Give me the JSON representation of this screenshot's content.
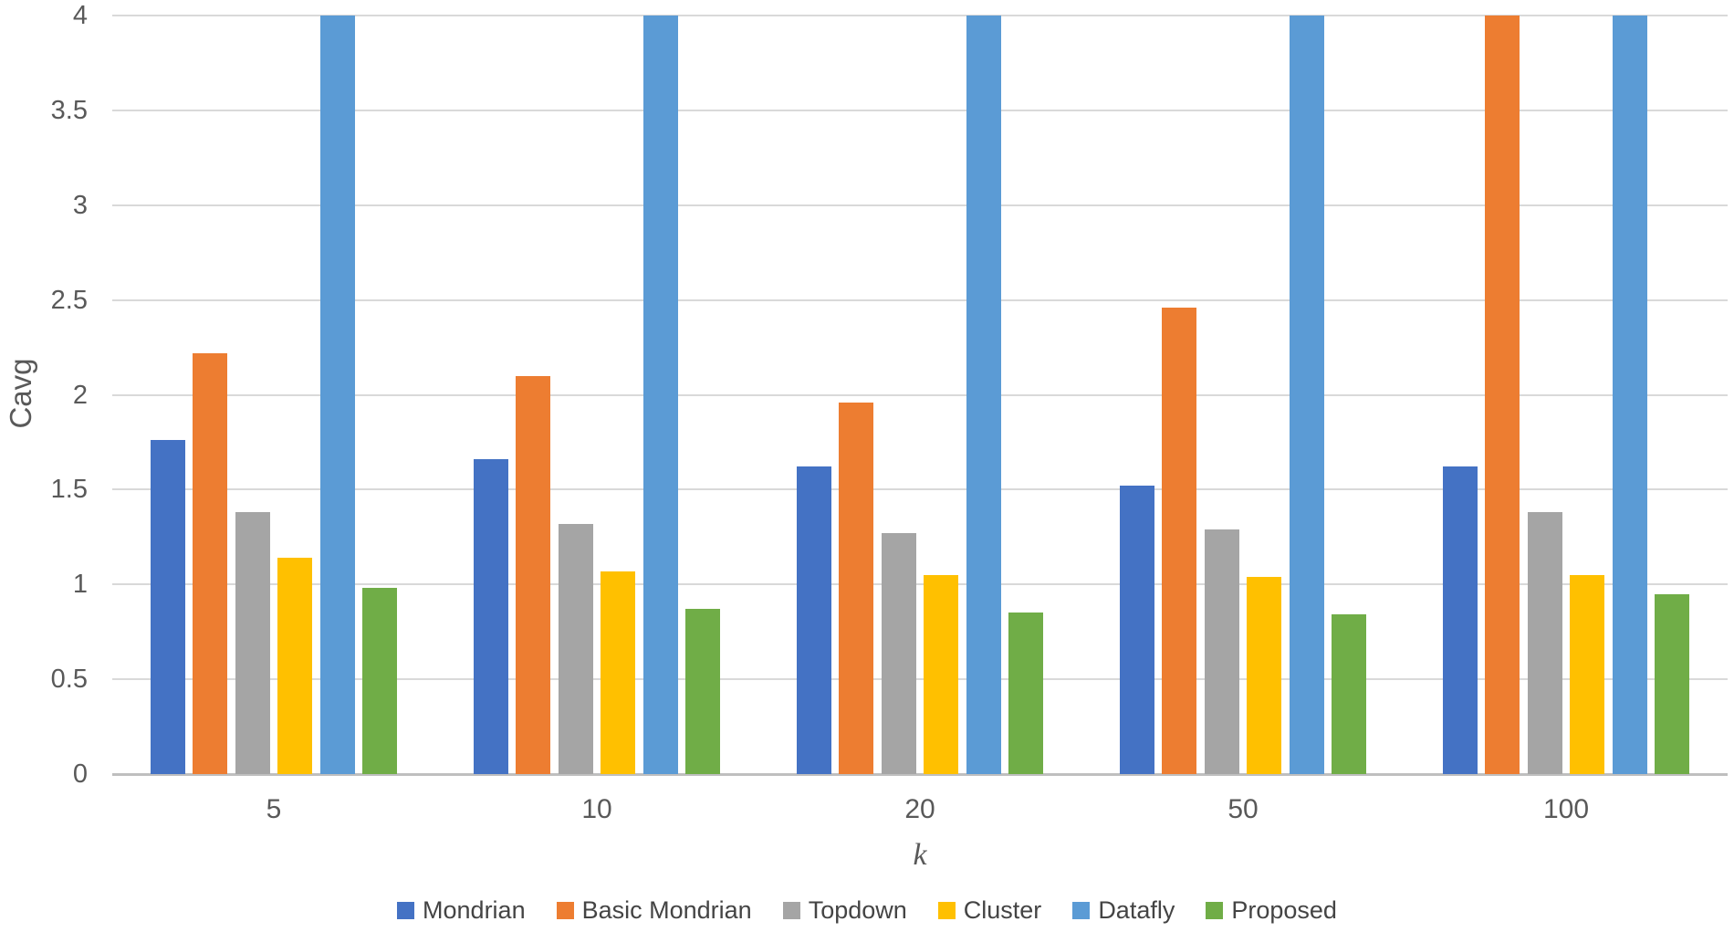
{
  "chart_data": {
    "type": "bar",
    "title": "",
    "xlabel": "k",
    "ylabel": "Cavg",
    "categories": [
      "5",
      "10",
      "20",
      "50",
      "100"
    ],
    "series": [
      {
        "name": "Mondrian",
        "color": "#4472C4",
        "values": [
          1.76,
          1.66,
          1.62,
          1.52,
          1.62
        ]
      },
      {
        "name": "Basic Mondrian",
        "color": "#ED7D31",
        "values": [
          2.22,
          2.1,
          1.96,
          2.46,
          4.0
        ]
      },
      {
        "name": "Topdown",
        "color": "#A5A5A5",
        "values": [
          1.38,
          1.32,
          1.27,
          1.29,
          1.38
        ]
      },
      {
        "name": "Cluster",
        "color": "#FFC000",
        "values": [
          1.14,
          1.07,
          1.05,
          1.04,
          1.05
        ]
      },
      {
        "name": "Datafly",
        "color": "#5B9BD5",
        "values": [
          4.0,
          4.0,
          4.0,
          4.0,
          4.0
        ]
      },
      {
        "name": "Proposed",
        "color": "#70AD47",
        "values": [
          0.98,
          0.87,
          0.85,
          0.84,
          0.95
        ]
      }
    ],
    "ylim": [
      0,
      4
    ],
    "yticks": [
      0,
      0.5,
      1,
      1.5,
      2,
      2.5,
      3,
      3.5,
      4
    ],
    "ytick_labels": [
      "0",
      "0.5",
      "1",
      "1.5",
      "2",
      "2.5",
      "3",
      "3.5",
      "4"
    ],
    "grid": true,
    "legend_position": "bottom",
    "text_color": "#595959",
    "grid_color": "#D9D9D9",
    "axis_color": "#BFBFBF"
  }
}
